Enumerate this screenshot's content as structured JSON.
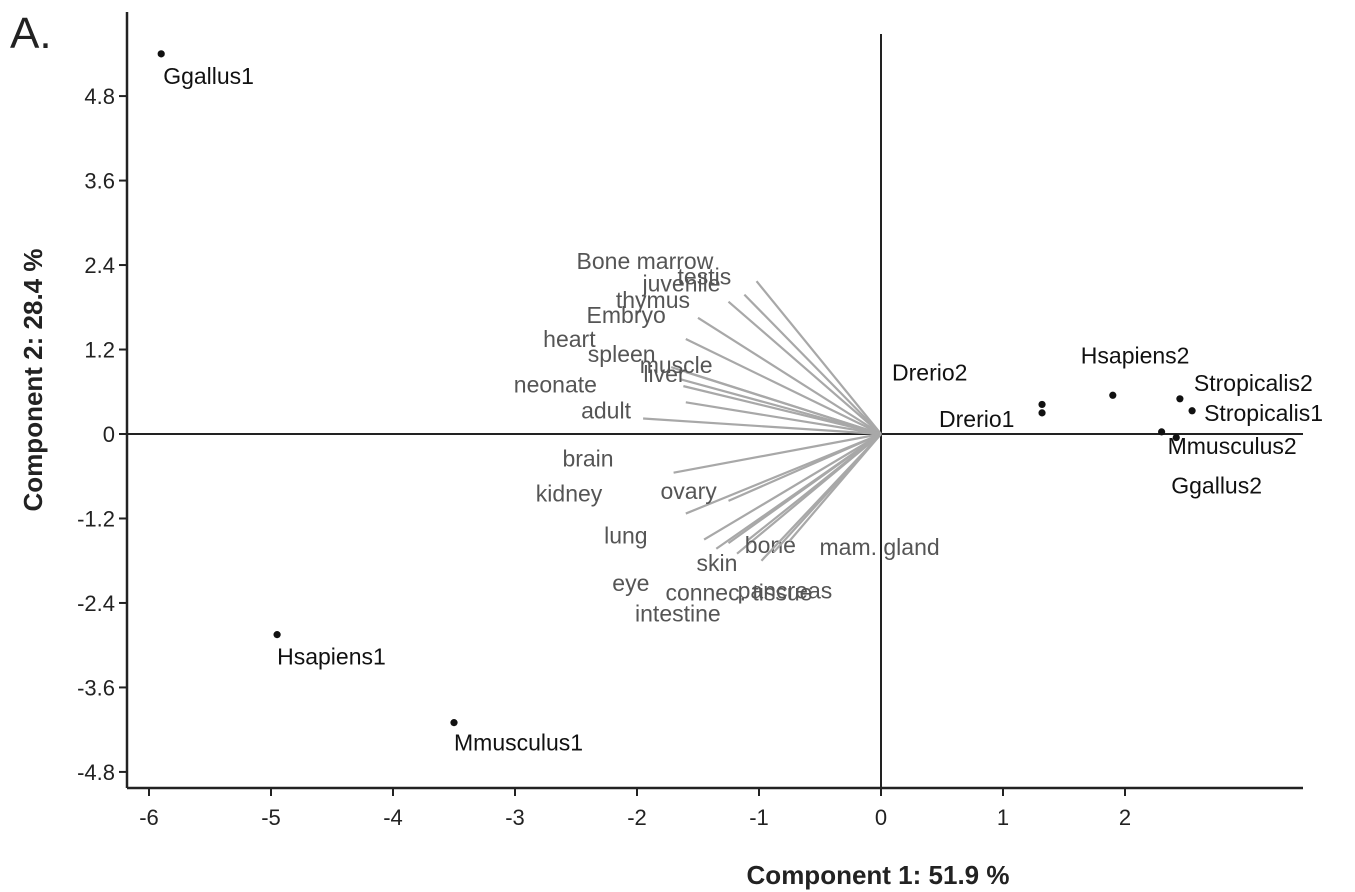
{
  "panel_label": "A.",
  "chart_data": {
    "type": "scatter",
    "xlabel": "Component 1: 51.9 %",
    "ylabel": "Component 2: 28.4 %",
    "xlim": [
      -6.2,
      3.5
    ],
    "ylim": [
      -5.0,
      6.0
    ],
    "x_ticks": [
      "-6",
      "-5",
      "-4",
      "-3",
      "-2",
      "-1",
      "0",
      "1",
      "2"
    ],
    "x_tick_values": [
      -6,
      -5,
      -4,
      -3,
      -2,
      -1,
      0,
      1,
      2
    ],
    "y_ticks": [
      "4.8",
      "3.6",
      "2.4",
      "1.2",
      "0",
      "-1.2",
      "-2.4",
      "-3.6",
      "-4.8"
    ],
    "y_tick_values": [
      4.8,
      3.6,
      2.4,
      1.2,
      0,
      -1.2,
      -2.4,
      -3.6,
      -4.8
    ],
    "points": [
      {
        "label": "Ggallus1",
        "x": -5.9,
        "y": 5.4
      },
      {
        "label": "Hsapiens1",
        "x": -4.95,
        "y": -2.85
      },
      {
        "label": "Mmusculus1",
        "x": -3.5,
        "y": -4.1
      },
      {
        "label": "Drerio2",
        "x": 1.32,
        "y": 0.42
      },
      {
        "label": "Drerio1",
        "x": 1.32,
        "y": 0.3
      },
      {
        "label": "Hsapiens2",
        "x": 1.9,
        "y": 0.55
      },
      {
        "label": "Stropicalis2",
        "x": 2.45,
        "y": 0.5
      },
      {
        "label": "Stropicalis1",
        "x": 2.55,
        "y": 0.33
      },
      {
        "label": "Mmusculus2",
        "x": 2.3,
        "y": 0.03
      },
      {
        "label": "Ggallus2",
        "x": 2.42,
        "y": -0.05
      }
    ],
    "loadings": [
      {
        "label": "Bone marrow",
        "x": -1.02,
        "y": 2.17
      },
      {
        "label": "testis",
        "x": -1.12,
        "y": 1.98
      },
      {
        "label": "juvenile",
        "x": -1.25,
        "y": 1.88
      },
      {
        "label": "thymus",
        "x": -1.5,
        "y": 1.65
      },
      {
        "label": "Embryo",
        "x": -1.6,
        "y": 1.35
      },
      {
        "label": "heart",
        "x": -1.72,
        "y": 0.95
      },
      {
        "label": "spleen",
        "x": -1.6,
        "y": 0.88
      },
      {
        "label": "muscle",
        "x": -1.65,
        "y": 0.78
      },
      {
        "label": "liver",
        "x": -1.62,
        "y": 0.68
      },
      {
        "label": "neonate",
        "x": -1.6,
        "y": 0.45
      },
      {
        "label": "adult",
        "x": -1.95,
        "y": 0.22
      },
      {
        "label": "brain",
        "x": -1.7,
        "y": -0.55
      },
      {
        "label": "kidney",
        "x": -1.6,
        "y": -1.13
      },
      {
        "label": "ovary",
        "x": -1.25,
        "y": -0.95
      },
      {
        "label": "lung",
        "x": -1.45,
        "y": -1.5
      },
      {
        "label": "eye",
        "x": -1.35,
        "y": -1.63
      },
      {
        "label": "skin",
        "x": -1.25,
        "y": -1.55
      },
      {
        "label": "intestine",
        "x": -1.18,
        "y": -1.7
      },
      {
        "label": "bone",
        "x": -1.1,
        "y": -1.52
      },
      {
        "label": "connec. tissue",
        "x": -0.98,
        "y": -1.8
      },
      {
        "label": "pancreas",
        "x": -0.88,
        "y": -1.68
      },
      {
        "label": "mam. gland",
        "x": -0.75,
        "y": -1.52
      }
    ]
  }
}
